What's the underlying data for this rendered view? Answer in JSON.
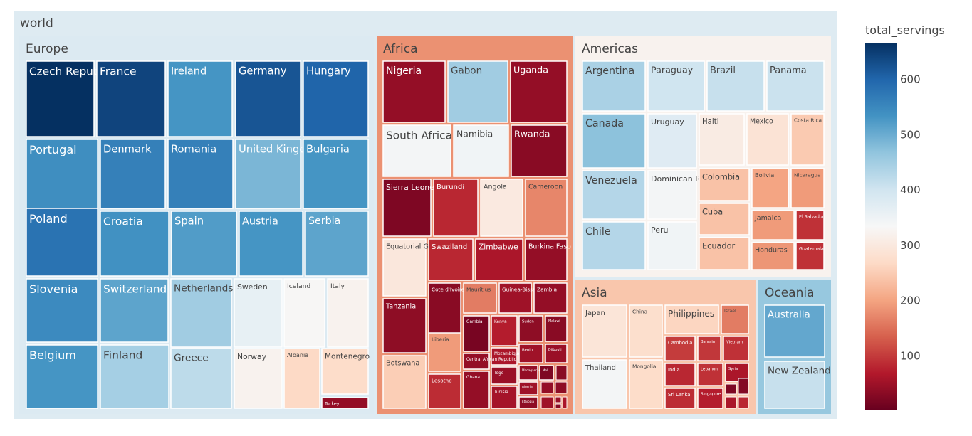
{
  "chart_data": {
    "type": "treemap",
    "root_label": "world",
    "color_variable": "total_servings",
    "colorscale": "RdBu",
    "color_range": [
      0,
      665
    ],
    "colorbar_ticks": [
      100,
      200,
      300,
      400,
      500,
      600
    ],
    "continents": [
      {
        "name": "Europe",
        "value": 380,
        "countries": [
          {
            "name": "Czech Republic",
            "value": 665
          },
          {
            "name": "France",
            "value": 640
          },
          {
            "name": "Ireland",
            "value": 530
          },
          {
            "name": "Germany",
            "value": 620
          },
          {
            "name": "Hungary",
            "value": 600
          },
          {
            "name": "Portugal",
            "value": 540
          },
          {
            "name": "Denmark",
            "value": 560
          },
          {
            "name": "Romania",
            "value": 560
          },
          {
            "name": "United Kingdom",
            "value": 485
          },
          {
            "name": "Bulgaria",
            "value": 530
          },
          {
            "name": "Poland",
            "value": 580
          },
          {
            "name": "Croatia",
            "value": 535
          },
          {
            "name": "Spain",
            "value": 520
          },
          {
            "name": "Austria",
            "value": 530
          },
          {
            "name": "Serbia",
            "value": 510
          },
          {
            "name": "Slovenia",
            "value": 545
          },
          {
            "name": "Switzerland",
            "value": 510
          },
          {
            "name": "Netherlands",
            "value": 450
          },
          {
            "name": "Sweden",
            "value": 360
          },
          {
            "name": "Iceland",
            "value": 330
          },
          {
            "name": "Italy",
            "value": 320
          },
          {
            "name": "Belgium",
            "value": 530
          },
          {
            "name": "Finland",
            "value": 445
          },
          {
            "name": "Greece",
            "value": 420
          },
          {
            "name": "Norway",
            "value": 320
          },
          {
            "name": "Albania",
            "value": 265
          },
          {
            "name": "Montenegro",
            "value": 270
          },
          {
            "name": "Turkey",
            "value": 40
          }
        ]
      },
      {
        "name": "Africa",
        "value": 180,
        "countries": [
          {
            "name": "Nigeria",
            "value": 40
          },
          {
            "name": "Gabon",
            "value": 450
          },
          {
            "name": "Uganda",
            "value": 40
          },
          {
            "name": "South Africa",
            "value": 340
          },
          {
            "name": "Namibia",
            "value": 345
          },
          {
            "name": "Rwanda",
            "value": 30
          },
          {
            "name": "Sierra Leone",
            "value": 20
          },
          {
            "name": "Burundi",
            "value": 80
          },
          {
            "name": "Angola",
            "value": 300
          },
          {
            "name": "Cameroon",
            "value": 170
          },
          {
            "name": "Equatorial Guinea",
            "value": 295
          },
          {
            "name": "Swaziland",
            "value": 80
          },
          {
            "name": "Zimbabwe",
            "value": 60
          },
          {
            "name": "Burkina Faso",
            "value": 40
          },
          {
            "name": "Tanzania",
            "value": 35
          },
          {
            "name": "Cote d'Ivoire",
            "value": 30
          },
          {
            "name": "Mauritius",
            "value": 160
          },
          {
            "name": "Guinea-Bissau",
            "value": 50
          },
          {
            "name": "Zambia",
            "value": 40
          },
          {
            "name": "Botswana",
            "value": 250
          },
          {
            "name": "Liberia",
            "value": 190
          },
          {
            "name": "Gambia",
            "value": 15
          },
          {
            "name": "Kenya",
            "value": 70
          },
          {
            "name": "Sudan",
            "value": 35
          },
          {
            "name": "Malawi",
            "value": 30
          },
          {
            "name": "Mozambique",
            "value": 60
          },
          {
            "name": "Benin",
            "value": 50
          },
          {
            "name": "Djibouti",
            "value": 45
          },
          {
            "name": "Central African Republic",
            "value": 40
          },
          {
            "name": "Togo",
            "value": 45
          },
          {
            "name": "Madagascar",
            "value": 40
          },
          {
            "name": "Mali",
            "value": 20
          },
          {
            "name": "Lesotho",
            "value": 85
          },
          {
            "name": "Ghana",
            "value": 40
          },
          {
            "name": "Tunisia",
            "value": 55
          },
          {
            "name": "Algeria",
            "value": 50
          },
          {
            "name": "Ethiopia",
            "value": 35
          }
        ]
      },
      {
        "name": "Americas",
        "value": 320,
        "countries": [
          {
            "name": "Argentina",
            "value": 440
          },
          {
            "name": "Paraguay",
            "value": 400
          },
          {
            "name": "Brazil",
            "value": 410
          },
          {
            "name": "Panama",
            "value": 405
          },
          {
            "name": "Canada",
            "value": 470
          },
          {
            "name": "Uruguay",
            "value": 375
          },
          {
            "name": "Haiti",
            "value": 305
          },
          {
            "name": "Mexico",
            "value": 285
          },
          {
            "name": "Costa Rica",
            "value": 245
          },
          {
            "name": "Venezuela",
            "value": 430
          },
          {
            "name": "Dominican Republic",
            "value": 340
          },
          {
            "name": "Colombia",
            "value": 235
          },
          {
            "name": "Bolivia",
            "value": 200
          },
          {
            "name": "Nicaragua",
            "value": 190
          },
          {
            "name": "Cuba",
            "value": 235
          },
          {
            "name": "Jamaica",
            "value": 190
          },
          {
            "name": "El Salvador",
            "value": 90
          },
          {
            "name": "Chile",
            "value": 430
          },
          {
            "name": "Peru",
            "value": 345
          },
          {
            "name": "Ecuador",
            "value": 235
          },
          {
            "name": "Honduras",
            "value": 185
          },
          {
            "name": "Guatemala",
            "value": 90
          }
        ]
      },
      {
        "name": "Asia",
        "value": 240,
        "countries": [
          {
            "name": "Japan",
            "value": 290
          },
          {
            "name": "China",
            "value": 275
          },
          {
            "name": "Philippines",
            "value": 260
          },
          {
            "name": "Israel",
            "value": 160
          },
          {
            "name": "Cambodia",
            "value": 100
          },
          {
            "name": "Bahrain",
            "value": 95
          },
          {
            "name": "Vietnam",
            "value": 90
          },
          {
            "name": "Thailand",
            "value": 340
          },
          {
            "name": "Mongolia",
            "value": 270
          },
          {
            "name": "India",
            "value": 80
          },
          {
            "name": "Lebanon",
            "value": 90
          },
          {
            "name": "Syria",
            "value": 60
          },
          {
            "name": "Sri Lanka",
            "value": 85
          },
          {
            "name": "Singapore",
            "value": 70
          }
        ]
      },
      {
        "name": "Oceania",
        "value": 460,
        "countries": [
          {
            "name": "Australia",
            "value": 505
          },
          {
            "name": "New Zealand",
            "value": 410
          }
        ]
      }
    ]
  }
}
